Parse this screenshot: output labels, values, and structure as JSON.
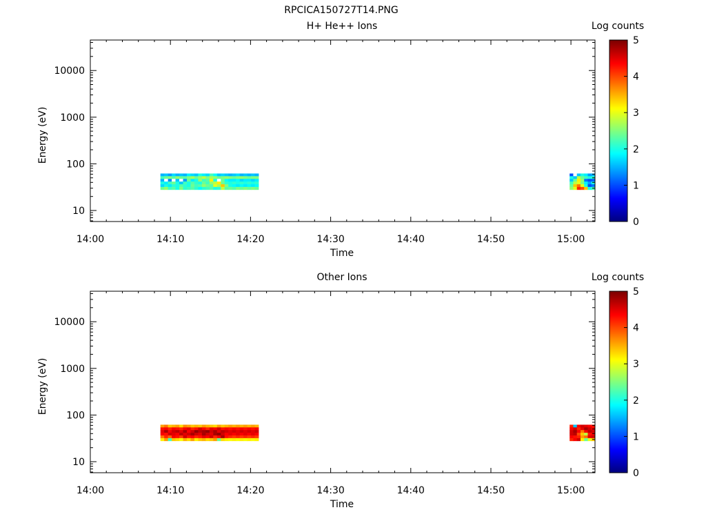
{
  "figure": {
    "title": "RPCICA150727T14.PNG"
  },
  "chart_data": [
    {
      "type": "heatmap",
      "title": "H+ He++ Ions",
      "xlabel": "Time",
      "ylabel": "Energy (eV)",
      "x_ticks": [
        "14:00",
        "14:10",
        "14:20",
        "14:30",
        "14:40",
        "14:50",
        "15:00"
      ],
      "y_ticks": [
        "10",
        "100",
        "1000",
        "10000"
      ],
      "y_scale": "log",
      "colorbar": {
        "label": "Log counts",
        "ticks": [
          "0",
          "1",
          "2",
          "3",
          "4",
          "5"
        ],
        "range": [
          0,
          5
        ]
      },
      "blocks": [
        {
          "t_start": "14:08:45",
          "t_end": "14:21:00",
          "e_min": 28,
          "e_max": 62,
          "rows": [
            [
              1.5,
              1.6,
              1.4,
              1.7,
              1.5,
              1.6,
              1.5,
              1.8,
              1.7,
              1.6,
              2.0,
              1.8,
              1.7,
              2.2,
              1.9,
              1.6,
              1.7,
              1.6,
              1.5,
              1.6,
              1.7,
              1.5,
              1.6,
              1.5,
              1.6,
              1.5
            ],
            [
              2.2,
              2.4,
              2.5,
              2.3,
              2.6,
              2.4,
              2.3,
              2.5,
              2.7,
              2.4,
              2.6,
              2.8,
              2.5,
              2.7,
              2.6,
              2.4,
              2.5,
              2.6,
              2.5,
              2.4,
              2.5,
              2.6,
              2.5,
              2.4,
              2.5,
              2.5
            ],
            [
              1.5,
              -1,
              1.3,
              -1,
              1.6,
              -1,
              1.4,
              2.4,
              1.8,
              2.0,
              2.6,
              2.2,
              2.3,
              3.2,
              2.0,
              -1,
              2.4,
              1.9,
              1.8,
              1.8,
              1.9,
              1.7,
              1.8,
              1.8,
              1.7,
              1.8
            ],
            [
              2.0,
              1.8,
              2.2,
              2.4,
              2.0,
              1.6,
              2.2,
              2.0,
              2.3,
              2.1,
              2.0,
              2.4,
              2.2,
              2.6,
              2.8,
              3.2,
              2.4,
              2.1,
              2.0,
              2.1,
              2.0,
              2.1,
              2.0,
              2.1,
              2.0,
              2.1
            ],
            [
              1.7,
              2.0,
              1.8,
              2.1,
              2.0,
              2.3,
              2.1,
              2.0,
              2.4,
              2.2,
              2.3,
              2.6,
              2.4,
              2.3,
              3.0,
              2.7,
              3.4,
              2.5,
              2.0,
              1.9,
              1.8,
              1.9,
              1.8,
              1.9,
              1.8,
              1.9
            ],
            [
              2.4,
              2.6,
              2.2,
              2.3,
              2.0,
              2.5,
              2.1,
              2.2,
              2.3,
              2.1,
              1.9,
              2.1,
              2.2,
              2.3,
              2.0,
              2.1,
              2.8,
              2.3,
              2.4,
              2.3,
              2.5,
              2.4,
              2.5,
              2.4,
              2.5,
              2.4
            ]
          ]
        },
        {
          "t_start": "14:59:50",
          "t_end": "15:03:00",
          "e_min": 28,
          "e_max": 62,
          "rows": [
            [
              1.0,
              -1,
              1.6,
              2.0,
              1.8,
              1.4,
              1.5
            ],
            [
              2.0,
              1.6,
              2.8,
              2.4,
              2.2,
              2.0,
              2.1
            ],
            [
              1.6,
              2.4,
              3.2,
              2.6,
              1.2,
              1.0,
              1.1
            ],
            [
              2.2,
              2.8,
              3.0,
              2.5,
              1.8,
              1.4,
              2.0
            ],
            [
              2.4,
              3.4,
              3.8,
              3.0,
              2.0,
              1.0,
              1.2
            ],
            [
              2.6,
              3.0,
              4.2,
              4.0,
              3.4,
              2.0,
              2.2
            ]
          ]
        }
      ]
    },
    {
      "type": "heatmap",
      "title": "Other Ions",
      "xlabel": "Time",
      "ylabel": "Energy (eV)",
      "x_ticks": [
        "14:00",
        "14:10",
        "14:20",
        "14:30",
        "14:40",
        "14:50",
        "15:00"
      ],
      "y_ticks": [
        "10",
        "100",
        "1000",
        "10000"
      ],
      "y_scale": "log",
      "colorbar": {
        "label": "Log counts",
        "ticks": [
          "0",
          "1",
          "2",
          "3",
          "4",
          "5"
        ],
        "range": [
          0,
          5
        ]
      },
      "blocks": [
        {
          "t_start": "14:08:45",
          "t_end": "14:21:00",
          "e_min": 28,
          "e_max": 62,
          "rows": [
            [
              3.6,
              3.8,
              3.4,
              3.5,
              3.6,
              3.3,
              3.7,
              3.6,
              3.4,
              3.5,
              3.4,
              3.6,
              3.5,
              3.4,
              3.3,
              3.6,
              3.4,
              3.5,
              3.6,
              3.5,
              3.6,
              3.5,
              3.6,
              3.5,
              3.6,
              3.5
            ],
            [
              4.3,
              4.4,
              4.2,
              4.4,
              4.3,
              4.2,
              4.4,
              4.5,
              4.2,
              4.3,
              4.6,
              4.4,
              4.2,
              4.5,
              4.4,
              4.6,
              4.3,
              4.4,
              4.3,
              4.4,
              4.3,
              4.4,
              4.3,
              4.4,
              4.3,
              4.4
            ],
            [
              4.5,
              4.8,
              4.4,
              4.6,
              4.7,
              4.5,
              4.8,
              4.4,
              4.6,
              4.9,
              4.7,
              4.8,
              4.9,
              4.6,
              4.8,
              4.5,
              4.7,
              4.6,
              4.5,
              4.6,
              4.5,
              4.6,
              4.5,
              4.6,
              4.5,
              4.6
            ],
            [
              4.4,
              4.3,
              4.6,
              4.5,
              4.4,
              4.7,
              4.5,
              4.6,
              4.8,
              4.6,
              4.5,
              4.8,
              4.6,
              4.5,
              4.8,
              4.9,
              4.6,
              4.4,
              4.5,
              4.4,
              4.5,
              4.4,
              4.5,
              4.4,
              4.5,
              4.4
            ],
            [
              3.8,
              4.2,
              3.9,
              4.4,
              4.3,
              4.1,
              4.6,
              4.3,
              4.4,
              4.2,
              4.3,
              4.5,
              4.4,
              4.6,
              4.2,
              4.4,
              4.8,
              4.3,
              4.2,
              4.1,
              4.2,
              4.1,
              4.2,
              4.1,
              4.2,
              4.1
            ],
            [
              3.2,
              3.6,
              2.2,
              3.4,
              3.3,
              3.1,
              3.5,
              3.3,
              3.6,
              3.2,
              3.4,
              3.5,
              3.3,
              3.4,
              3.6,
              2.4,
              3.3,
              3.2,
              3.1,
              3.2,
              3.1,
              3.2,
              3.1,
              3.2,
              3.1,
              3.2
            ]
          ]
        },
        {
          "t_start": "14:59:50",
          "t_end": "15:03:00",
          "e_min": 28,
          "e_max": 62,
          "rows": [
            [
              4.2,
              1.6,
              4.4,
              4.6,
              4.5,
              4.4,
              4.3
            ],
            [
              4.4,
              4.6,
              4.2,
              4.5,
              4.8,
              4.6,
              4.4
            ],
            [
              4.6,
              4.8,
              4.4,
              3.8,
              4.4,
              4.7,
              4.6
            ],
            [
              4.6,
              4.7,
              4.0,
              3.4,
              2.8,
              4.3,
              4.4
            ],
            [
              4.4,
              4.3,
              4.2,
              3.6,
              3.8,
              4.5,
              4.6
            ],
            [
              4.2,
              4.4,
              4.6,
              3.2,
              2.4,
              3.0,
              3.4
            ]
          ]
        }
      ]
    }
  ]
}
